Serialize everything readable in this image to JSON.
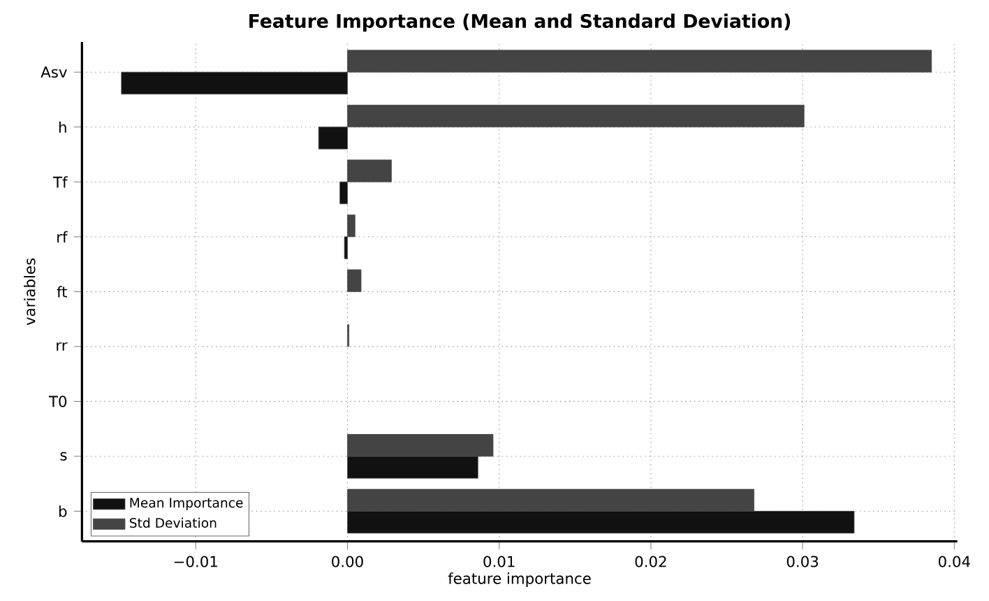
{
  "chart_data": {
    "type": "bar",
    "orientation": "horizontal",
    "title": "Feature Importance (Mean and Standard Deviation)",
    "xlabel": "feature importance",
    "ylabel": "variables",
    "categories": [
      "Asv",
      "h",
      "Tf",
      "rf",
      "ft",
      "rr",
      "T0",
      "s",
      "b"
    ],
    "series": [
      {
        "name": "Mean Importance",
        "color": "#111111",
        "values": [
          -0.0149,
          -0.0019,
          -0.0005,
          -0.0002,
          null,
          null,
          null,
          0.0086,
          0.0334
        ]
      },
      {
        "name": "Std Deviation",
        "color": "#444444",
        "values": [
          0.0385,
          0.0301,
          0.0029,
          0.0005,
          0.0009,
          0.0001,
          null,
          0.0096,
          0.0268
        ]
      }
    ],
    "xlim": [
      -0.0175,
      0.0402
    ],
    "xticks": [
      {
        "value": -0.01,
        "label": "−0.01"
      },
      {
        "value": 0,
        "label": "0.00"
      },
      0.01,
      0.02,
      0.03,
      0.04
    ],
    "grid": true,
    "legend": "bottom left"
  }
}
